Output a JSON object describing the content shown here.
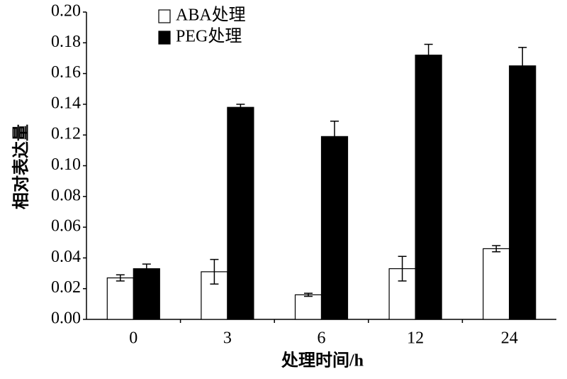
{
  "chart_data": {
    "type": "bar",
    "xlabel": "处理时间/h",
    "ylabel": "相对表达量",
    "categories": [
      "0",
      "3",
      "6",
      "12",
      "24"
    ],
    "series": [
      {
        "name": "ABA处理",
        "color": "#ffffff",
        "values": [
          0.027,
          0.031,
          0.016,
          0.033,
          0.046
        ],
        "errors": [
          0.002,
          0.008,
          0.001,
          0.008,
          0.002
        ]
      },
      {
        "name": "PEG处理",
        "color": "#000000",
        "values": [
          0.033,
          0.138,
          0.119,
          0.172,
          0.165
        ],
        "errors": [
          0.003,
          0.002,
          0.01,
          0.007,
          0.012
        ]
      }
    ],
    "ylim": [
      0,
      0.2
    ],
    "yticks": [
      {
        "value": 0,
        "label": "0.00"
      },
      {
        "value": 0.02,
        "label": "0.02"
      },
      {
        "value": 0.04,
        "label": "0.04"
      },
      {
        "value": 0.06,
        "label": "0.06"
      },
      {
        "value": 0.08,
        "label": "0.08"
      },
      {
        "value": 0.1,
        "label": "0.10"
      },
      {
        "value": 0.12,
        "label": "0.12"
      },
      {
        "value": 0.14,
        "label": "0.14"
      },
      {
        "value": 0.16,
        "label": "0.16"
      },
      {
        "value": 0.18,
        "label": "0.18"
      },
      {
        "value": 0.2,
        "label": "0.20"
      }
    ],
    "legend": "upper left",
    "grid": false
  }
}
